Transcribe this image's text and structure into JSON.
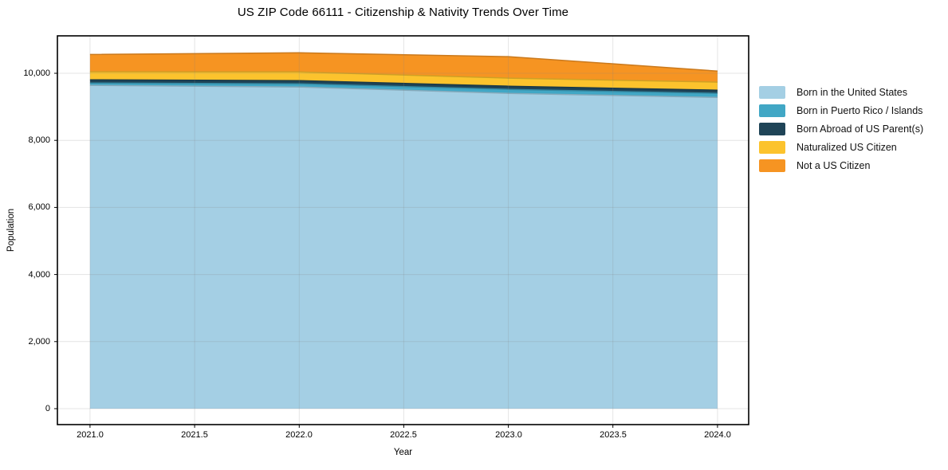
{
  "chart_data": {
    "type": "area",
    "stacked": true,
    "title": "US ZIP Code 66111 - Citizenship & Nativity Trends Over Time",
    "xlabel": "Year",
    "ylabel": "Population",
    "x": [
      2021,
      2022,
      2023,
      2024
    ],
    "series": [
      {
        "name": "Born in the United States",
        "color": "#a4cfe4",
        "values": [
          9640,
          9590,
          9400,
          9280
        ]
      },
      {
        "name": "Born in Puerto Rico / Islands",
        "color": "#41a7c5",
        "values": [
          70,
          95,
          120,
          120
        ]
      },
      {
        "name": "Born Abroad of US Parent(s)",
        "color": "#1f4457",
        "values": [
          95,
          95,
          95,
          95
        ]
      },
      {
        "name": "Naturalized US Citizen",
        "color": "#fcc32d",
        "values": [
          240,
          260,
          240,
          240
        ]
      },
      {
        "name": "Not a US Citizen",
        "color": "#f69422",
        "values": [
          515,
          570,
          640,
          330
        ]
      }
    ],
    "totals": [
      10560,
      10610,
      10495,
      10065
    ],
    "xlim": [
      2020.844,
      2024.149
    ],
    "ylim": [
      -475,
      11116
    ],
    "xticks": {
      "values": [
        2021.0,
        2021.5,
        2022.0,
        2022.5,
        2023.0,
        2023.5,
        2024.0
      ],
      "labels": [
        "2021.0",
        "2021.5",
        "2022.0",
        "2022.5",
        "2023.0",
        "2023.5",
        "2024.0"
      ]
    },
    "yticks": {
      "values": [
        0,
        2000,
        4000,
        6000,
        8000,
        10000
      ],
      "labels": [
        "0",
        "2,000",
        "4,000",
        "6,000",
        "8,000",
        "10,000"
      ]
    },
    "grid": true,
    "grid_color": "rgba(130,130,130,0.22)",
    "legend_position": "right"
  }
}
